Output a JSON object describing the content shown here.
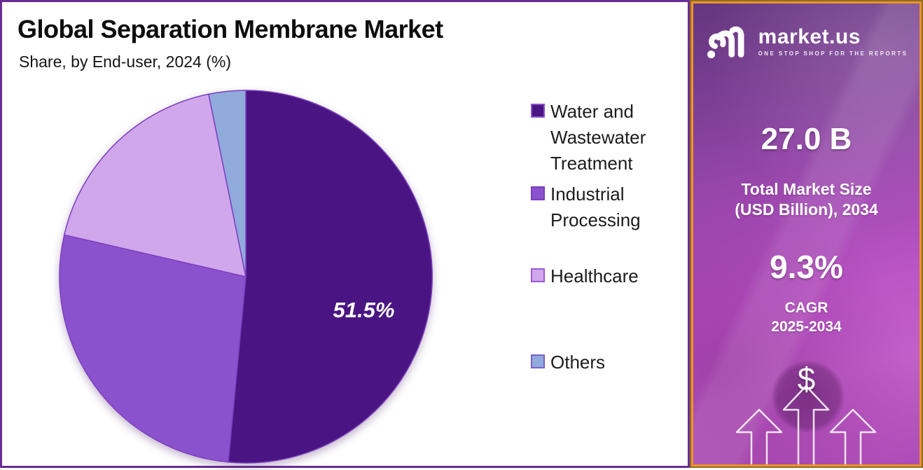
{
  "header": {
    "title": "Global Separation Membrane Market",
    "subtitle": "Share, by End-user, 2024 (%)"
  },
  "chart_data": {
    "type": "pie",
    "title": "Global Separation Membrane Market",
    "subtitle": "Share, by End-user, 2024 (%)",
    "unit": "%",
    "start_angle_deg": 0,
    "direction": "clockwise",
    "legend_position": "right",
    "stroke_color": "#7C3FBE",
    "slices": [
      {
        "label": "Water and Wastewater Treatment",
        "value": 51.5,
        "color": "#4A1582",
        "swatch_border": "#8B52CE",
        "data_label": "51.5%",
        "label_angle_deg": 109,
        "label_radius_frac": 0.67
      },
      {
        "label": "Industrial Processing",
        "value": 27.1,
        "color": "#8B52CE",
        "swatch_border": "#7A3FC0",
        "data_label": ""
      },
      {
        "label": "Healthcare",
        "value": 18.2,
        "color": "#D1A7EC",
        "swatch_border": "#9B59D6",
        "data_label": ""
      },
      {
        "label": "Others",
        "value": 3.2,
        "color": "#90AADC",
        "swatch_border": "#7C5FC9",
        "data_label": ""
      }
    ]
  },
  "sidebar": {
    "brand": {
      "name": "market.us",
      "tagline": "ONE STOP SHOP FOR THE REPORTS"
    },
    "market_size": {
      "value": "27.0 B",
      "label_line1": "Total Market Size",
      "label_line2": "(USD Billion), 2034"
    },
    "cagr": {
      "value": "9.3%",
      "label_line1": "CAGR",
      "label_line2": "2025-2034"
    },
    "dollar_symbol": "$",
    "accent_border_color": "#EE912F",
    "panel_border_color": "#8E6F20"
  },
  "colors": {
    "panel_border": "#6B2D94",
    "title_text": "#0d0d0d",
    "legend_text": "#1c1c1c"
  }
}
